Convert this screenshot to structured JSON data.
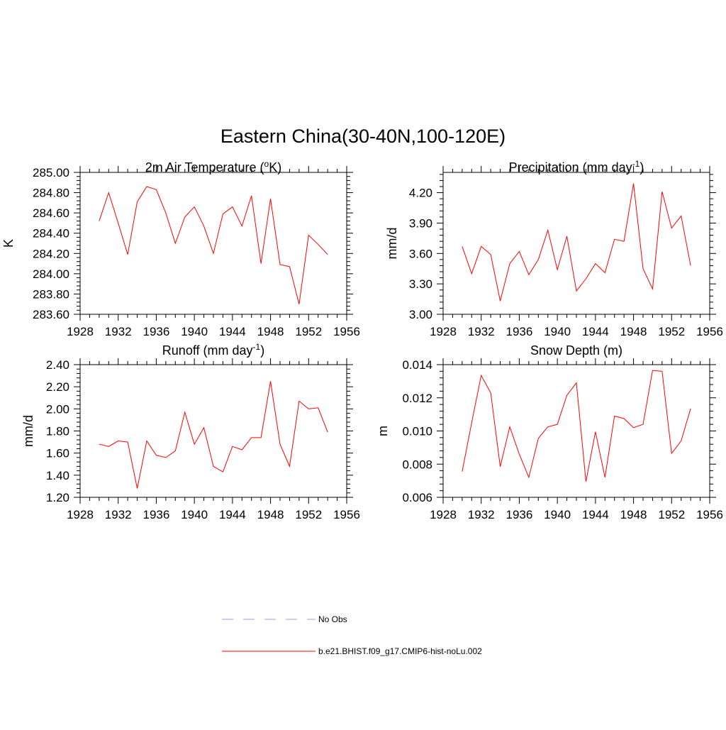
{
  "figure": {
    "title": "Eastern China(30-40N,100-120E)"
  },
  "legend": {
    "entries": [
      {
        "label": "No Obs",
        "color": "#9999ff",
        "style": "dashed"
      },
      {
        "label": "b.e21.BHIST.f09_g17.CMIP6-hist-noLu.002",
        "color": "#ff0000",
        "style": "solid"
      }
    ]
  },
  "chart_data": [
    {
      "type": "line",
      "title": "2m Air Temperature (",
      "title_sup": "o",
      "title_after": "K)",
      "ylabel": "K",
      "xlim": [
        1928,
        1956
      ],
      "ylim": [
        283.6,
        285.0
      ],
      "xticks": [
        "1928",
        "1932",
        "1936",
        "1940",
        "1944",
        "1948",
        "1952",
        "1956"
      ],
      "yticks": [
        "283.60",
        "283.80",
        "284.00",
        "284.20",
        "284.40",
        "284.60",
        "284.80",
        "285.00"
      ],
      "ytick_values": [
        283.6,
        283.8,
        284.0,
        284.2,
        284.4,
        284.6,
        284.8,
        285.0
      ],
      "series": [
        {
          "color": "#ff0000",
          "x": [
            1930,
            1931,
            1932,
            1933,
            1934,
            1935,
            1936,
            1937,
            1938,
            1939,
            1940,
            1941,
            1942,
            1943,
            1944,
            1945,
            1946,
            1947,
            1948,
            1949,
            1950,
            1951,
            1952,
            1953,
            1954
          ],
          "values": [
            284.52,
            284.8,
            284.5,
            284.19,
            284.71,
            284.86,
            284.83,
            284.6,
            284.3,
            284.56,
            284.66,
            284.47,
            284.2,
            284.59,
            284.66,
            284.47,
            284.77,
            284.1,
            284.74,
            284.09,
            284.07,
            283.7,
            284.38,
            284.29,
            284.19
          ]
        }
      ]
    },
    {
      "type": "line",
      "title": "Precipitation (mm day",
      "title_sup": "-1",
      "title_after": ")",
      "ylabel": "mm/d",
      "xlim": [
        1928,
        1956
      ],
      "ylim": [
        3.0,
        4.4
      ],
      "xticks": [
        "1928",
        "1932",
        "1936",
        "1940",
        "1944",
        "1948",
        "1952",
        "1956"
      ],
      "yticks": [
        "3.00",
        "3.30",
        "3.60",
        "3.90",
        "4.20"
      ],
      "ytick_values": [
        3.0,
        3.3,
        3.6,
        3.9,
        4.2
      ],
      "series": [
        {
          "color": "#ff0000",
          "x": [
            1930,
            1931,
            1932,
            1933,
            1934,
            1935,
            1936,
            1937,
            1938,
            1939,
            1940,
            1941,
            1942,
            1943,
            1944,
            1945,
            1946,
            1947,
            1948,
            1949,
            1950,
            1951,
            1952,
            1953,
            1954
          ],
          "values": [
            3.67,
            3.4,
            3.67,
            3.59,
            3.13,
            3.5,
            3.62,
            3.39,
            3.54,
            3.83,
            3.44,
            3.77,
            3.23,
            3.35,
            3.5,
            3.41,
            3.74,
            3.72,
            4.29,
            3.45,
            3.25,
            4.21,
            3.85,
            3.97,
            3.48
          ]
        }
      ]
    },
    {
      "type": "line",
      "title": "Runoff (mm day",
      "title_sup": "-1",
      "title_after": ")",
      "ylabel": "mm/d",
      "xlim": [
        1928,
        1956
      ],
      "ylim": [
        1.2,
        2.4
      ],
      "xticks": [
        "1928",
        "1932",
        "1936",
        "1940",
        "1944",
        "1948",
        "1952",
        "1956"
      ],
      "yticks": [
        "1.20",
        "1.40",
        "1.60",
        "1.80",
        "2.00",
        "2.20",
        "2.40"
      ],
      "ytick_values": [
        1.2,
        1.4,
        1.6,
        1.8,
        2.0,
        2.2,
        2.4
      ],
      "series": [
        {
          "color": "#ff0000",
          "x": [
            1930,
            1931,
            1932,
            1933,
            1934,
            1935,
            1936,
            1937,
            1938,
            1939,
            1940,
            1941,
            1942,
            1943,
            1944,
            1945,
            1946,
            1947,
            1948,
            1949,
            1950,
            1951,
            1952,
            1953,
            1954
          ],
          "values": [
            1.68,
            1.66,
            1.71,
            1.7,
            1.28,
            1.71,
            1.58,
            1.56,
            1.62,
            1.97,
            1.68,
            1.83,
            1.48,
            1.43,
            1.66,
            1.63,
            1.74,
            1.74,
            2.25,
            1.68,
            1.48,
            2.07,
            2.0,
            2.01,
            1.79
          ]
        }
      ]
    },
    {
      "type": "line",
      "title": "Snow Depth (m)",
      "title_sup": "",
      "title_after": "",
      "ylabel": "m",
      "xlim": [
        1928,
        1956
      ],
      "ylim": [
        0.006,
        0.014
      ],
      "xticks": [
        "1928",
        "1932",
        "1936",
        "1940",
        "1944",
        "1948",
        "1952",
        "1956"
      ],
      "yticks": [
        "0.006",
        "0.008",
        "0.010",
        "0.012",
        "0.014"
      ],
      "ytick_values": [
        0.006,
        0.008,
        0.01,
        0.012,
        0.014
      ],
      "series": [
        {
          "color": "#ff0000",
          "x": [
            1930,
            1931,
            1932,
            1933,
            1934,
            1935,
            1936,
            1937,
            1938,
            1939,
            1940,
            1941,
            1942,
            1943,
            1944,
            1945,
            1946,
            1947,
            1948,
            1949,
            1950,
            1951,
            1952,
            1953,
            1954
          ],
          "values": [
            0.00755,
            0.0105,
            0.01335,
            0.0123,
            0.00785,
            0.01025,
            0.0086,
            0.0072,
            0.00955,
            0.01025,
            0.0104,
            0.01215,
            0.0129,
            0.00695,
            0.00995,
            0.0072,
            0.0109,
            0.01075,
            0.0102,
            0.0104,
            0.01365,
            0.0136,
            0.00865,
            0.0094,
            0.01135
          ]
        }
      ]
    }
  ]
}
